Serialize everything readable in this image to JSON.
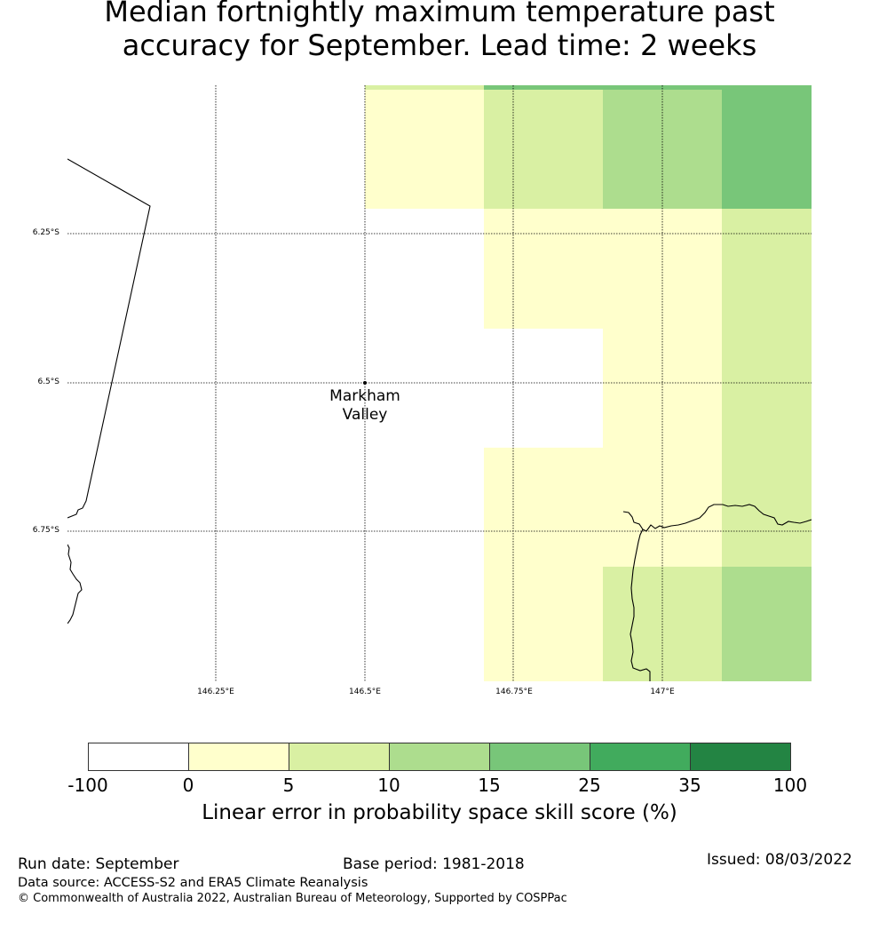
{
  "title_line1": "Median fortnightly maximum temperature past",
  "title_line2": "accuracy for September. Lead time: 2 weeks",
  "map": {
    "lat_labels": [
      "6.25°S",
      "6.5°S",
      "6.75°S"
    ],
    "lon_labels": [
      "146.25°E",
      "146.5°E",
      "146.75°E",
      "147°E"
    ],
    "place": {
      "name_line1": "Markham",
      "name_line2": "Valley"
    },
    "colors": {
      "c0": "#ffffcc",
      "c5": "#d9f0a3",
      "c10": "#addd8e",
      "c15": "#78c679",
      "c25": "#41ab5d",
      "c35": "#238443"
    }
  },
  "colorbar": {
    "ticks": [
      "-100",
      "0",
      "5",
      "10",
      "15",
      "25",
      "35",
      "100"
    ],
    "colors": [
      "#ffffff",
      "#ffffcc",
      "#d9f0a3",
      "#addd8e",
      "#78c679",
      "#41ab5d",
      "#238443"
    ],
    "label": "Linear error in probability space skill score (%)"
  },
  "footer": {
    "run_date": "Run date: September",
    "base_period": "Base period: 1981-2018",
    "issued": "Issued: 08/03/2022",
    "data_source": "Data source: ACCESS-S2 and ERA5 Climate Reanalysis",
    "copyright": "© Commonwealth of Australia 2022, Australian Bureau of Meteorology, Supported by COSPPac"
  }
}
